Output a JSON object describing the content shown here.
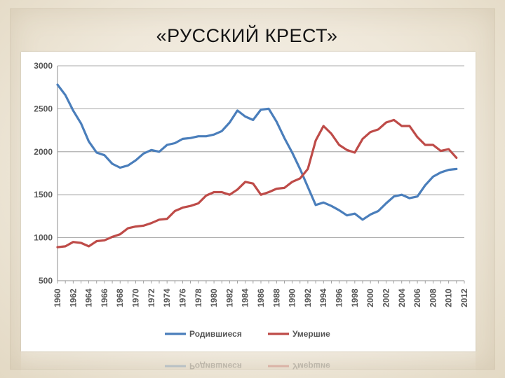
{
  "slide": {
    "title": "«РУССКИЙ КРЕСТ»"
  },
  "chart_data": {
    "type": "line",
    "title": "",
    "xlabel": "",
    "ylabel": "",
    "ylim": [
      500,
      3000
    ],
    "yticks": [
      500,
      1000,
      1500,
      2000,
      2500,
      3000
    ],
    "xlim": [
      1960,
      2012
    ],
    "xticks": [
      1960,
      1962,
      1964,
      1966,
      1968,
      1970,
      1972,
      1974,
      1976,
      1978,
      1980,
      1982,
      1984,
      1986,
      1988,
      1990,
      1992,
      1994,
      1996,
      1998,
      2000,
      2002,
      2004,
      2006,
      2008,
      2010,
      2012
    ],
    "grid": true,
    "legend_position": "bottom",
    "x": [
      1960,
      1961,
      1962,
      1963,
      1964,
      1965,
      1966,
      1967,
      1968,
      1969,
      1970,
      1971,
      1972,
      1973,
      1974,
      1975,
      1976,
      1977,
      1978,
      1979,
      1980,
      1981,
      1982,
      1983,
      1984,
      1985,
      1986,
      1987,
      1988,
      1989,
      1990,
      1991,
      1992,
      1993,
      1994,
      1995,
      1996,
      1997,
      1998,
      1999,
      2000,
      2001,
      2002,
      2003,
      2004,
      2005,
      2006,
      2007,
      2008,
      2009,
      2010,
      2011
    ],
    "series": [
      {
        "name": "Родившиеся",
        "color": "#4a7ebb",
        "values": [
          2780,
          2660,
          2480,
          2330,
          2120,
          1990,
          1960,
          1860,
          1815,
          1840,
          1900,
          1980,
          2020,
          2000,
          2080,
          2100,
          2150,
          2160,
          2180,
          2180,
          2200,
          2240,
          2340,
          2480,
          2410,
          2370,
          2490,
          2500,
          2350,
          2160,
          1990,
          1800,
          1590,
          1380,
          1410,
          1370,
          1320,
          1260,
          1280,
          1210,
          1270,
          1310,
          1400,
          1480,
          1500,
          1460,
          1480,
          1610,
          1710,
          1760,
          1790,
          1800
        ]
      },
      {
        "name": "Умершие",
        "color": "#be4b48",
        "values": [
          890,
          900,
          950,
          940,
          900,
          960,
          970,
          1010,
          1040,
          1110,
          1130,
          1140,
          1170,
          1210,
          1220,
          1310,
          1350,
          1370,
          1400,
          1490,
          1530,
          1530,
          1500,
          1560,
          1650,
          1630,
          1500,
          1530,
          1570,
          1580,
          1650,
          1690,
          1800,
          2130,
          2300,
          2210,
          2080,
          2020,
          1990,
          2150,
          2230,
          2260,
          2340,
          2370,
          2300,
          2300,
          2170,
          2080,
          2080,
          2010,
          2030,
          1930
        ]
      }
    ]
  }
}
